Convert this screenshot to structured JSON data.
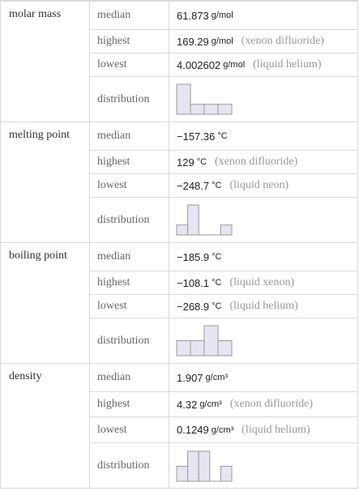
{
  "sections": [
    {
      "property": "molar mass",
      "rows": [
        {
          "label": "median",
          "value": "61.873",
          "unit": "g/mol"
        },
        {
          "label": "highest",
          "value": "169.29",
          "unit": "g/mol",
          "note": "(xenon difluoride)"
        },
        {
          "label": "lowest",
          "value": "4.002602",
          "unit": "g/mol",
          "note": "(liquid helium)"
        }
      ],
      "distribution": {
        "label": "distribution",
        "counts": [
          3,
          1,
          1,
          1
        ]
      }
    },
    {
      "property": "melting point",
      "rows": [
        {
          "label": "median",
          "value": "−157.36",
          "unit": "°C"
        },
        {
          "label": "highest",
          "value": "129",
          "unit": "°C",
          "note": "(xenon difluoride)"
        },
        {
          "label": "lowest",
          "value": "−248.7",
          "unit": "°C",
          "note": "(liquid neon)"
        }
      ],
      "distribution": {
        "label": "distribution",
        "counts": [
          1,
          3,
          0,
          0,
          1
        ]
      }
    },
    {
      "property": "boiling point",
      "rows": [
        {
          "label": "median",
          "value": "−185.9",
          "unit": "°C"
        },
        {
          "label": "highest",
          "value": "−108.1",
          "unit": "°C",
          "note": "(liquid xenon)"
        },
        {
          "label": "lowest",
          "value": "−268.9",
          "unit": "°C",
          "note": "(liquid helium)"
        }
      ],
      "distribution": {
        "label": "distribution",
        "counts": [
          1,
          1,
          2,
          1
        ]
      }
    },
    {
      "property": "density",
      "rows": [
        {
          "label": "median",
          "value": "1.907",
          "unit": "g/cm³"
        },
        {
          "label": "highest",
          "value": "4.32",
          "unit": "g/cm³",
          "note": "(xenon difluoride)"
        },
        {
          "label": "lowest",
          "value": "0.1249",
          "unit": "g/cm³",
          "note": "(liquid helium)"
        }
      ],
      "distribution": {
        "label": "distribution",
        "counts": [
          1,
          2,
          2,
          0,
          1
        ]
      }
    }
  ]
}
